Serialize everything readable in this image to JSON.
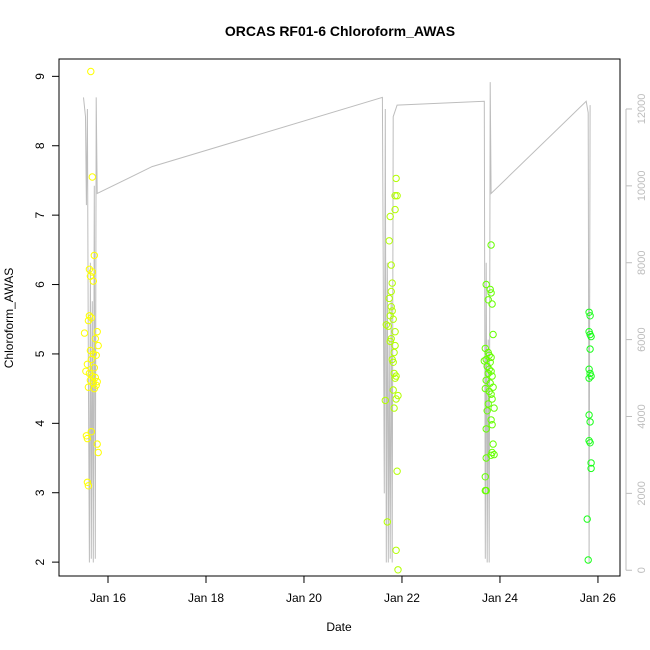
{
  "chart_data": {
    "type": "scatter",
    "title": "ORCAS RF01-6 Chloroform_AWAS",
    "xlabel": "Date",
    "ylabel": "Chloroform_AWAS",
    "x_ticks": [
      "Jan 16",
      "Jan 18",
      "Jan 20",
      "Jan 22",
      "Jan 24",
      "Jan 26"
    ],
    "x_tick_days": [
      16,
      18,
      20,
      22,
      24,
      26
    ],
    "xlim_days": [
      15.0,
      26.45
    ],
    "ylim": [
      1.8,
      9.25
    ],
    "y_ticks": [
      2,
      3,
      4,
      5,
      6,
      7,
      8,
      9
    ],
    "secondary_axis": {
      "ticks": [
        0,
        2000,
        4000,
        6000,
        8000,
        10000,
        12000
      ],
      "ylim": [
        -150,
        13300
      ],
      "color": "#bdbdbd",
      "series_description": "altitude trace"
    },
    "colors": {
      "flight1": "#ffff00",
      "flight2": "#b3ff00",
      "flight3": "#66ff00",
      "flight4": "#1aff1a",
      "trace": "#bdbdbd",
      "axis": "#000000"
    },
    "series": [
      {
        "color": "#ffff00",
        "points": [
          [
            15.65,
            9.07
          ],
          [
            15.68,
            7.55
          ],
          [
            15.62,
            6.22
          ],
          [
            15.68,
            6.18
          ],
          [
            15.64,
            6.12
          ],
          [
            15.7,
            6.05
          ],
          [
            15.62,
            5.55
          ],
          [
            15.66,
            5.52
          ],
          [
            15.6,
            5.48
          ],
          [
            15.52,
            5.3
          ],
          [
            15.78,
            5.32
          ],
          [
            15.74,
            5.22
          ],
          [
            15.8,
            5.12
          ],
          [
            15.64,
            5.05
          ],
          [
            15.7,
            5.0
          ],
          [
            15.76,
            4.98
          ],
          [
            15.66,
            4.92
          ],
          [
            15.58,
            4.85
          ],
          [
            15.72,
            4.8
          ],
          [
            15.55,
            4.75
          ],
          [
            15.62,
            4.72
          ],
          [
            15.68,
            4.68
          ],
          [
            15.74,
            4.66
          ],
          [
            15.64,
            4.62
          ],
          [
            15.78,
            4.6
          ],
          [
            15.7,
            4.58
          ],
          [
            15.76,
            4.55
          ],
          [
            15.6,
            4.52
          ],
          [
            15.72,
            4.5
          ],
          [
            15.56,
            3.82
          ],
          [
            15.58,
            3.78
          ],
          [
            15.78,
            3.7
          ],
          [
            15.8,
            3.58
          ],
          [
            15.58,
            3.15
          ],
          [
            15.6,
            3.1
          ],
          [
            15.66,
            3.88
          ],
          [
            15.72,
            6.42
          ]
        ]
      },
      {
        "color": "#b3ff00",
        "points": [
          [
            21.88,
            7.53
          ],
          [
            21.86,
            7.28
          ],
          [
            21.9,
            7.28
          ],
          [
            21.86,
            7.08
          ],
          [
            21.76,
            6.98
          ],
          [
            21.74,
            6.63
          ],
          [
            21.78,
            6.28
          ],
          [
            21.8,
            6.02
          ],
          [
            21.78,
            5.9
          ],
          [
            21.74,
            5.8
          ],
          [
            21.78,
            5.68
          ],
          [
            21.8,
            5.62
          ],
          [
            21.76,
            5.55
          ],
          [
            21.82,
            5.5
          ],
          [
            21.72,
            5.4
          ],
          [
            21.68,
            5.42
          ],
          [
            21.86,
            5.32
          ],
          [
            21.78,
            5.22
          ],
          [
            21.76,
            5.18
          ],
          [
            21.86,
            5.12
          ],
          [
            21.84,
            5.02
          ],
          [
            21.8,
            4.92
          ],
          [
            21.82,
            4.88
          ],
          [
            21.84,
            4.72
          ],
          [
            21.88,
            4.68
          ],
          [
            21.86,
            4.65
          ],
          [
            21.82,
            4.48
          ],
          [
            21.92,
            4.4
          ],
          [
            21.88,
            4.35
          ],
          [
            21.66,
            4.33
          ],
          [
            21.84,
            4.22
          ],
          [
            21.9,
            3.31
          ],
          [
            21.7,
            2.58
          ],
          [
            21.88,
            2.17
          ],
          [
            21.92,
            1.89
          ]
        ]
      },
      {
        "color": "#66ff00",
        "points": [
          [
            23.82,
            6.57
          ],
          [
            23.72,
            6.0
          ],
          [
            23.8,
            5.93
          ],
          [
            23.82,
            5.88
          ],
          [
            23.76,
            5.78
          ],
          [
            23.84,
            5.72
          ],
          [
            23.86,
            5.28
          ],
          [
            23.7,
            5.08
          ],
          [
            23.76,
            5.02
          ],
          [
            23.78,
            4.98
          ],
          [
            23.82,
            4.95
          ],
          [
            23.72,
            4.92
          ],
          [
            23.68,
            4.9
          ],
          [
            23.8,
            4.88
          ],
          [
            23.74,
            4.82
          ],
          [
            23.78,
            4.78
          ],
          [
            23.82,
            4.75
          ],
          [
            23.76,
            4.72
          ],
          [
            23.84,
            4.68
          ],
          [
            23.72,
            4.62
          ],
          [
            23.8,
            4.58
          ],
          [
            23.86,
            4.52
          ],
          [
            23.7,
            4.5
          ],
          [
            23.78,
            4.46
          ],
          [
            23.82,
            4.42
          ],
          [
            23.84,
            4.35
          ],
          [
            23.76,
            4.28
          ],
          [
            23.88,
            4.22
          ],
          [
            23.74,
            4.18
          ],
          [
            23.82,
            4.05
          ],
          [
            23.84,
            3.98
          ],
          [
            23.72,
            3.92
          ],
          [
            23.86,
            3.7
          ],
          [
            23.84,
            3.58
          ],
          [
            23.82,
            3.54
          ],
          [
            23.88,
            3.55
          ],
          [
            23.72,
            3.5
          ],
          [
            23.7,
            3.23
          ],
          [
            23.7,
            3.03
          ],
          [
            23.72,
            3.03
          ]
        ]
      },
      {
        "color": "#1aff1a",
        "points": [
          [
            25.82,
            5.6
          ],
          [
            25.84,
            5.55
          ],
          [
            25.82,
            5.32
          ],
          [
            25.84,
            5.28
          ],
          [
            25.86,
            5.25
          ],
          [
            25.84,
            5.07
          ],
          [
            25.82,
            4.78
          ],
          [
            25.84,
            4.72
          ],
          [
            25.86,
            4.68
          ],
          [
            25.82,
            4.65
          ],
          [
            25.82,
            4.12
          ],
          [
            25.84,
            4.02
          ],
          [
            25.82,
            3.75
          ],
          [
            25.84,
            3.72
          ],
          [
            25.86,
            3.43
          ],
          [
            25.86,
            3.35
          ],
          [
            25.78,
            2.62
          ],
          [
            25.8,
            2.03
          ]
        ]
      }
    ]
  }
}
